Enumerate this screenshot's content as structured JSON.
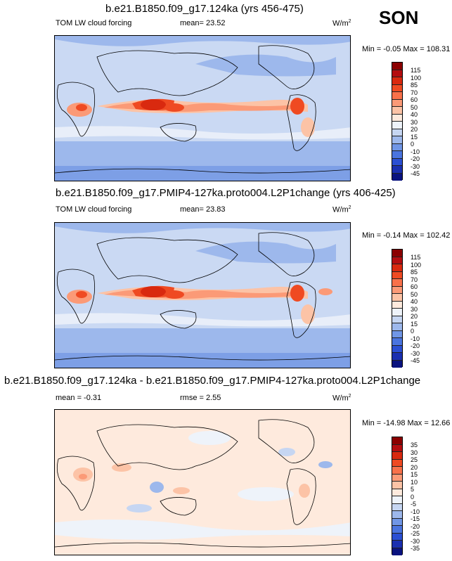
{
  "season": "SON",
  "panels": [
    {
      "title": "b.e21.B1850.f09_g17.124ka (yrs 456-475)",
      "variable": "TOM LW cloud forcing",
      "stat1": "mean=  23.52",
      "stat2": "",
      "units": "W/m",
      "units_sup": "2",
      "minmax": "Min =  -0.05 Max = 108.31",
      "colorbar_labels": [
        "115",
        "100",
        "85",
        "70",
        "60",
        "50",
        "40",
        "30",
        "20",
        "15",
        "0",
        "-10",
        "-20",
        "-30",
        "-45"
      ],
      "colorbar_colors": [
        "#8b0000",
        "#b40d10",
        "#d9290f",
        "#ef4a22",
        "#f8714a",
        "#fb9a77",
        "#fcc3a6",
        "#feeadd",
        "#eef3fa",
        "#c6d6f2",
        "#9db8ec",
        "#7096e6",
        "#4a74df",
        "#2b4fd3",
        "#1a2fb0",
        "#0a137f"
      ]
    },
    {
      "title": "b.e21.B1850.f09_g17.PMIP4-127ka.proto004.L2P1change (yrs 406-425)",
      "variable": "TOM LW cloud forcing",
      "stat1": "mean=  23.83",
      "stat2": "",
      "units": "W/m",
      "units_sup": "2",
      "minmax": "Min =  -0.14 Max = 102.42",
      "colorbar_labels": [
        "115",
        "100",
        "85",
        "70",
        "60",
        "50",
        "40",
        "30",
        "20",
        "15",
        "0",
        "-10",
        "-20",
        "-30",
        "-45"
      ],
      "colorbar_colors": [
        "#8b0000",
        "#b40d10",
        "#d9290f",
        "#ef4a22",
        "#f8714a",
        "#fb9a77",
        "#fcc3a6",
        "#feeadd",
        "#eef3fa",
        "#c6d6f2",
        "#9db8ec",
        "#7096e6",
        "#4a74df",
        "#2b4fd3",
        "#1a2fb0",
        "#0a137f"
      ]
    },
    {
      "title": "b.e21.B1850.f09_g17.124ka - b.e21.B1850.f09_g17.PMIP4-127ka.proto004.L2P1change",
      "variable": "",
      "stat1": "mean =  -0.31",
      "stat2": "rmse =  2.55",
      "units": "W/m",
      "units_sup": "2",
      "minmax": "Min = -14.98 Max =  12.66",
      "colorbar_labels": [
        "35",
        "30",
        "25",
        "20",
        "15",
        "10",
        "5",
        "0",
        "-5",
        "-10",
        "-15",
        "-20",
        "-25",
        "-30",
        "-35"
      ],
      "colorbar_colors": [
        "#8b0000",
        "#b40d10",
        "#d9290f",
        "#ef4a22",
        "#f8714a",
        "#fb9a77",
        "#fcc3a6",
        "#feeadd",
        "#eef3fa",
        "#c6d6f2",
        "#9db8ec",
        "#7096e6",
        "#4a74df",
        "#2b4fd3",
        "#1a2fb0",
        "#0a137f"
      ]
    }
  ]
}
